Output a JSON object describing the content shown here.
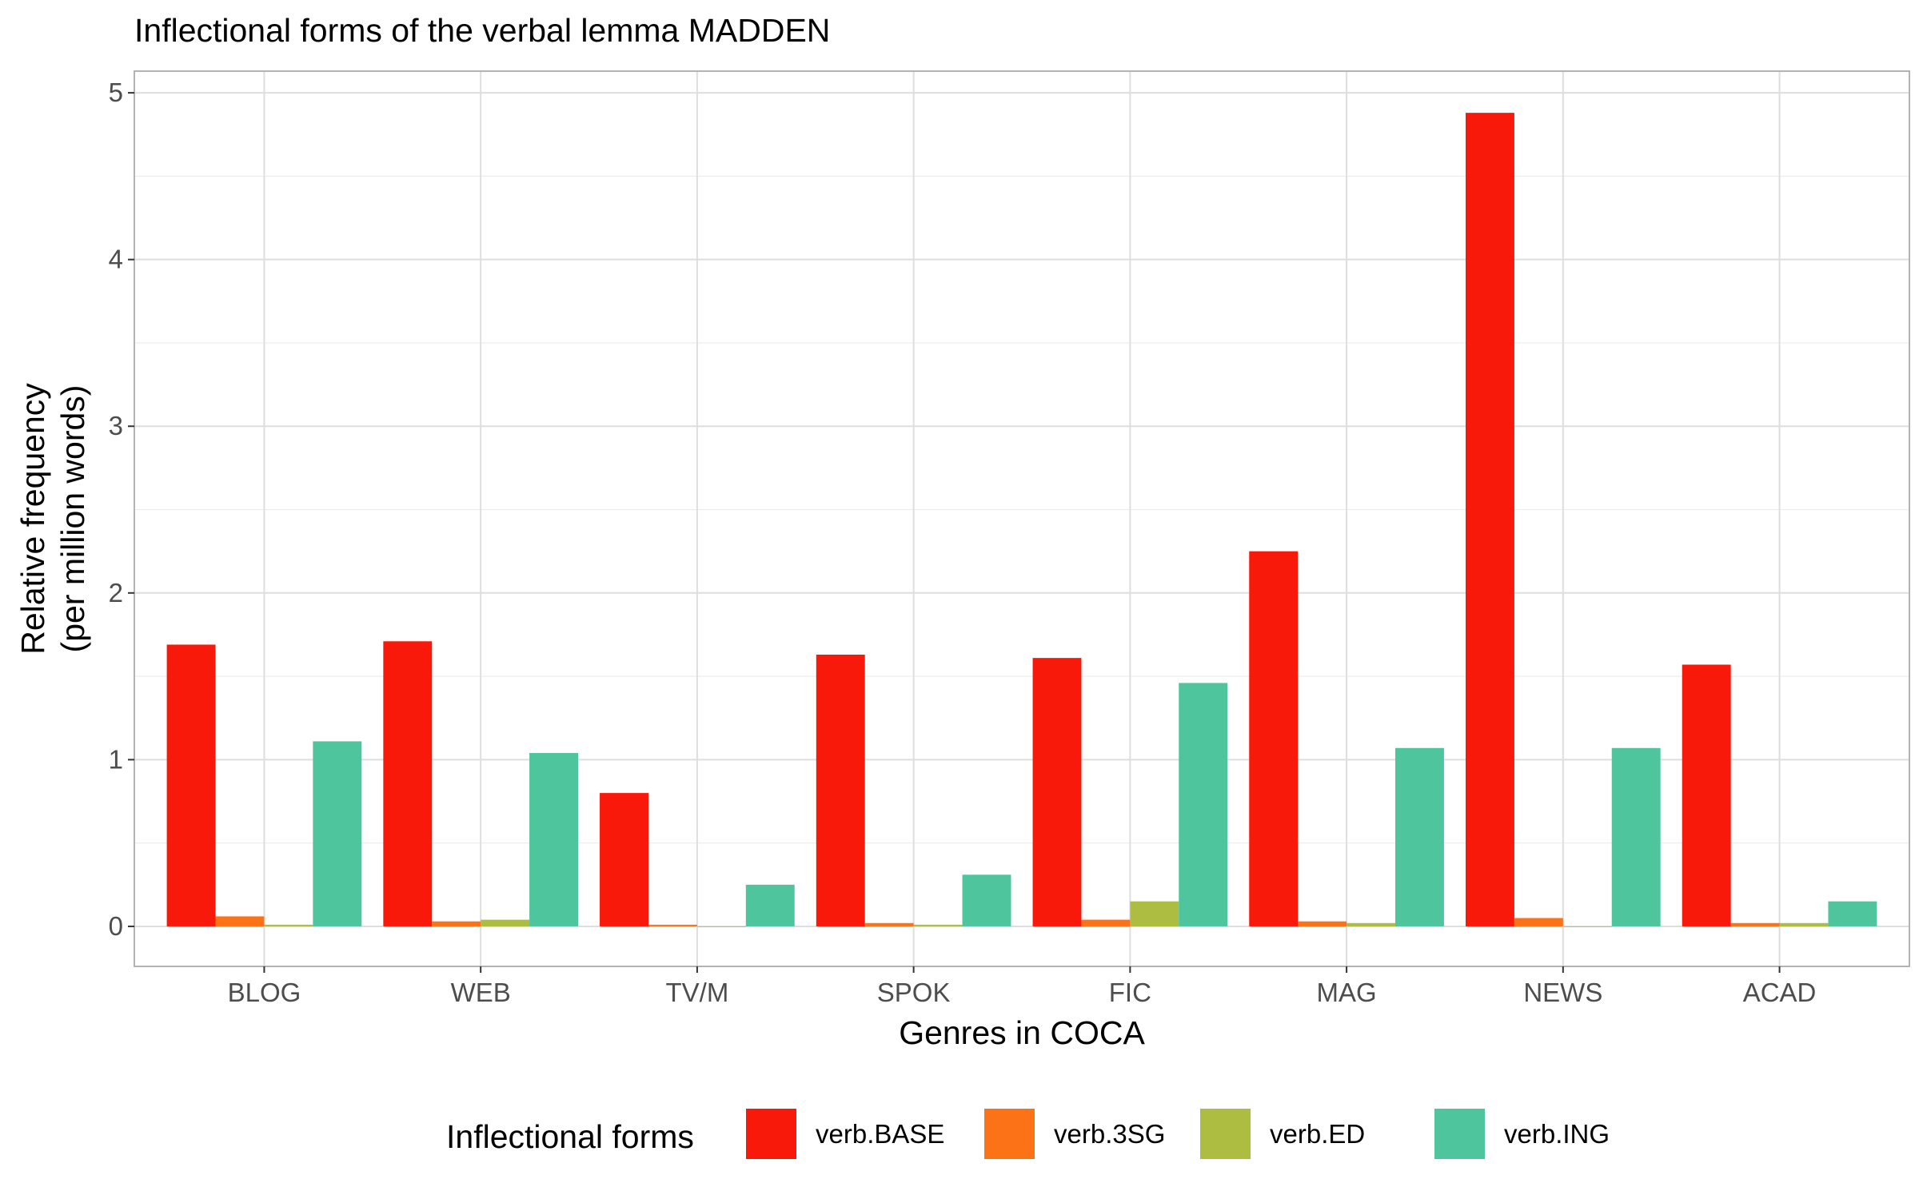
{
  "chart_data": {
    "type": "bar",
    "title": "Inflectional forms of the verbal lemma MADDEN",
    "xlabel": "Genres in COCA",
    "ylabel_line1": "Relative frequency",
    "ylabel_line2": "(per million words)",
    "categories": [
      "BLOG",
      "WEB",
      "TV/M",
      "SPOK",
      "FIC",
      "MAG",
      "NEWS",
      "ACAD"
    ],
    "yticks": [
      "0",
      "1",
      "2",
      "3",
      "4",
      "5"
    ],
    "ylim": [
      -0.24,
      5.13
    ],
    "grid": true,
    "legend": {
      "title": "Inflectional forms",
      "position": "bottom"
    },
    "series": [
      {
        "name": "verb.BASE",
        "color": "#F8190A",
        "values": [
          1.69,
          1.71,
          0.8,
          1.63,
          1.61,
          2.25,
          4.88,
          1.57
        ]
      },
      {
        "name": "verb.3SG",
        "color": "#FC7216",
        "values": [
          0.06,
          0.03,
          0.01,
          0.02,
          0.04,
          0.03,
          0.05,
          0.02
        ]
      },
      {
        "name": "verb.ED",
        "color": "#ADBD41",
        "values": [
          0.01,
          0.04,
          0.0,
          0.01,
          0.15,
          0.02,
          0.0,
          0.02
        ]
      },
      {
        "name": "verb.ING",
        "color": "#4FC59E",
        "values": [
          1.11,
          1.04,
          0.25,
          0.31,
          1.46,
          1.07,
          1.07,
          0.15
        ]
      }
    ]
  }
}
